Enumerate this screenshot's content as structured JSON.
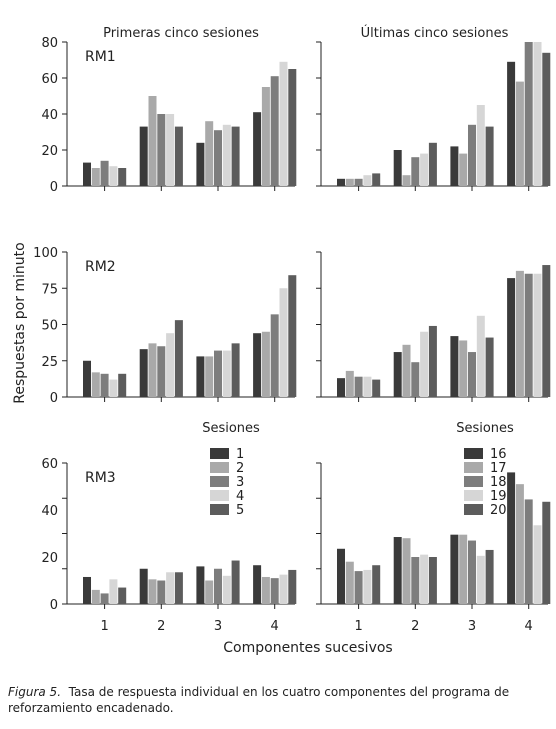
{
  "figure": {
    "xlabel": "Componentes sucesivos",
    "ylabel": "Respuestas por minuto",
    "caption_label": "Figura 5.",
    "caption_text": "Tasa de respuesta individual en los cuatro componentes del programa de reforzamiento encadenado."
  },
  "chart_data": [
    {
      "type": "bar",
      "title": "Primeras cinco sesiones",
      "panel_label": "RM1",
      "categories": [
        "1",
        "2",
        "3",
        "4"
      ],
      "xlabel": "",
      "ylabel": "",
      "ylim": [
        0,
        80
      ],
      "yticks": [
        0,
        20,
        40,
        60,
        80
      ],
      "series": [
        {
          "name": "1",
          "values": [
            13,
            33,
            24,
            41
          ]
        },
        {
          "name": "2",
          "values": [
            10,
            50,
            36,
            55
          ]
        },
        {
          "name": "3",
          "values": [
            14,
            40,
            31,
            61
          ]
        },
        {
          "name": "4",
          "values": [
            11,
            40,
            34,
            69
          ]
        },
        {
          "name": "5",
          "values": [
            10,
            33,
            33,
            65
          ]
        }
      ]
    },
    {
      "type": "bar",
      "title": "Últimas cinco sesiones",
      "panel_label": "",
      "categories": [
        "1",
        "2",
        "3",
        "4"
      ],
      "xlabel": "",
      "ylabel": "",
      "ylim": [
        0,
        80
      ],
      "yticks": [],
      "series": [
        {
          "name": "16",
          "values": [
            4,
            20,
            22,
            69
          ]
        },
        {
          "name": "17",
          "values": [
            4,
            6,
            18,
            58
          ]
        },
        {
          "name": "18",
          "values": [
            4,
            16,
            34,
            80
          ]
        },
        {
          "name": "19",
          "values": [
            6,
            18,
            45,
            80
          ]
        },
        {
          "name": "20",
          "values": [
            7,
            24,
            33,
            74
          ]
        }
      ]
    },
    {
      "type": "bar",
      "title": "",
      "panel_label": "RM2",
      "categories": [
        "1",
        "2",
        "3",
        "4"
      ],
      "xlabel": "",
      "ylabel": "",
      "ylim": [
        0,
        100
      ],
      "yticks": [
        0,
        25,
        50,
        75,
        100
      ],
      "series": [
        {
          "name": "1",
          "values": [
            25,
            33,
            28,
            44
          ]
        },
        {
          "name": "2",
          "values": [
            17,
            37,
            28,
            45
          ]
        },
        {
          "name": "3",
          "values": [
            16,
            35,
            32,
            57
          ]
        },
        {
          "name": "4",
          "values": [
            12,
            44,
            32,
            75
          ]
        },
        {
          "name": "5",
          "values": [
            16,
            53,
            37,
            84
          ]
        }
      ]
    },
    {
      "type": "bar",
      "title": "",
      "panel_label": "",
      "categories": [
        "1",
        "2",
        "3",
        "4"
      ],
      "xlabel": "",
      "ylabel": "",
      "ylim": [
        0,
        100
      ],
      "yticks": [],
      "series": [
        {
          "name": "16",
          "values": [
            13,
            31,
            42,
            82
          ]
        },
        {
          "name": "17",
          "values": [
            18,
            36,
            39,
            87
          ]
        },
        {
          "name": "18",
          "values": [
            14,
            24,
            31,
            85
          ]
        },
        {
          "name": "19",
          "values": [
            14,
            45,
            56,
            85
          ]
        },
        {
          "name": "20",
          "values": [
            12,
            49,
            41,
            91
          ]
        }
      ]
    },
    {
      "type": "bar",
      "title": "",
      "panel_label": "RM3",
      "categories": [
        "1",
        "2",
        "3",
        "4"
      ],
      "xlabel": "",
      "ylabel": "",
      "ylim": [
        0,
        60
      ],
      "yticks": [
        0,
        20,
        40,
        60
      ],
      "legend_title": "Sesiones",
      "legend": [
        "1",
        "2",
        "3",
        "4",
        "5"
      ],
      "series": [
        {
          "name": "1",
          "values": [
            11.5,
            15,
            16,
            16.5
          ]
        },
        {
          "name": "2",
          "values": [
            6,
            10.5,
            10,
            11.5
          ]
        },
        {
          "name": "3",
          "values": [
            4.5,
            10,
            15,
            11
          ]
        },
        {
          "name": "4",
          "values": [
            10.5,
            13.5,
            12,
            12.5
          ]
        },
        {
          "name": "5",
          "values": [
            7,
            13.5,
            18.5,
            14.5
          ]
        }
      ]
    },
    {
      "type": "bar",
      "title": "",
      "panel_label": "",
      "categories": [
        "1",
        "2",
        "3",
        "4"
      ],
      "xlabel": "",
      "ylabel": "",
      "ylim": [
        0,
        60
      ],
      "yticks": [],
      "legend_title": "Sesiones",
      "legend": [
        "16",
        "17",
        "18",
        "19",
        "20"
      ],
      "series": [
        {
          "name": "16",
          "values": [
            23.5,
            28.5,
            29.5,
            56
          ]
        },
        {
          "name": "17",
          "values": [
            18,
            28,
            29.5,
            51
          ]
        },
        {
          "name": "18",
          "values": [
            14,
            20,
            27,
            44.5
          ]
        },
        {
          "name": "19",
          "values": [
            14.5,
            21,
            20.5,
            33.5
          ]
        },
        {
          "name": "20",
          "values": [
            16.5,
            20,
            23,
            43.5
          ]
        }
      ]
    }
  ],
  "colors": [
    "#3a3a3a",
    "#a9a9a9",
    "#7d7d7d",
    "#d6d6d6",
    "#5c5c5c"
  ]
}
